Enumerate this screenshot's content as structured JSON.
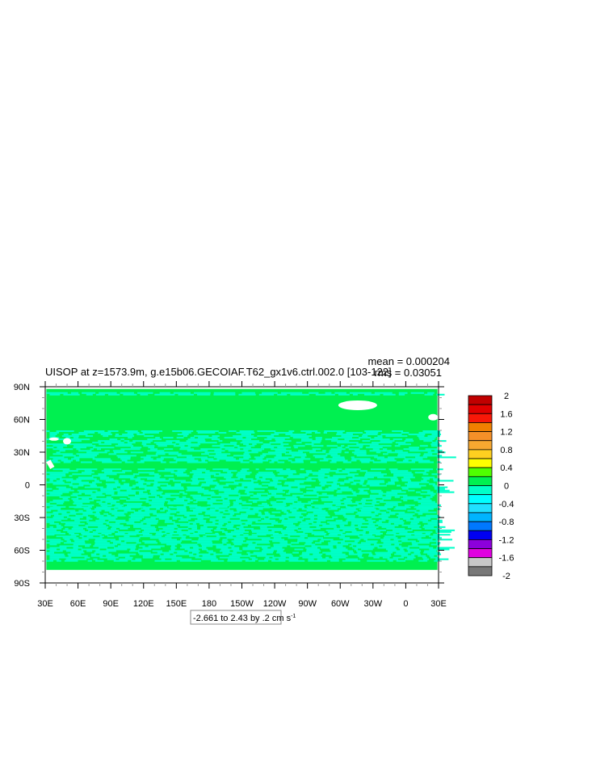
{
  "title": "UISOP at z=1573.9m, g.e15b06.GECOIAF.T62_gx1v6.ctrl.002.0 [103-122]",
  "stats": {
    "mean": "mean = 0.000204",
    "rms": "rms = 0.03051"
  },
  "map": {
    "projection": "cylindrical equidistant",
    "lon_range": [
      30,
      390
    ],
    "lat_range": [
      -90,
      90
    ],
    "lon_labels": [
      "30E",
      "60E",
      "90E",
      "120E",
      "150E",
      "180",
      "150W",
      "120W",
      "90W",
      "60W",
      "30W",
      "0",
      "30E"
    ],
    "lat_labels": [
      "90N",
      "60N",
      "30N",
      "0",
      "30S",
      "60S",
      "90S"
    ],
    "background_color": "#00f050",
    "secondary_color": "#00ffc8",
    "missing_color": "#ffffff"
  },
  "contour_info": "-2.661 to 2.43 by .2 cm s",
  "contour_info_superscript": "-1",
  "colorbar": {
    "labels": [
      "2",
      "1.6",
      "1.2",
      "0.8",
      "0.4",
      "0",
      "-0.4",
      "-0.8",
      "-1.2",
      "-1.6",
      "-2"
    ],
    "colors": [
      "#c00000",
      "#e00000",
      "#f81808",
      "#f08000",
      "#f59028",
      "#f8a830",
      "#ffd020",
      "#ffff00",
      "#50ff00",
      "#00f050",
      "#00ffc8",
      "#00ffff",
      "#20e0ff",
      "#00b4ff",
      "#0078ff",
      "#0000f0",
      "#8c00dc",
      "#e000e0",
      "#c8c8c8",
      "#787878"
    ]
  }
}
